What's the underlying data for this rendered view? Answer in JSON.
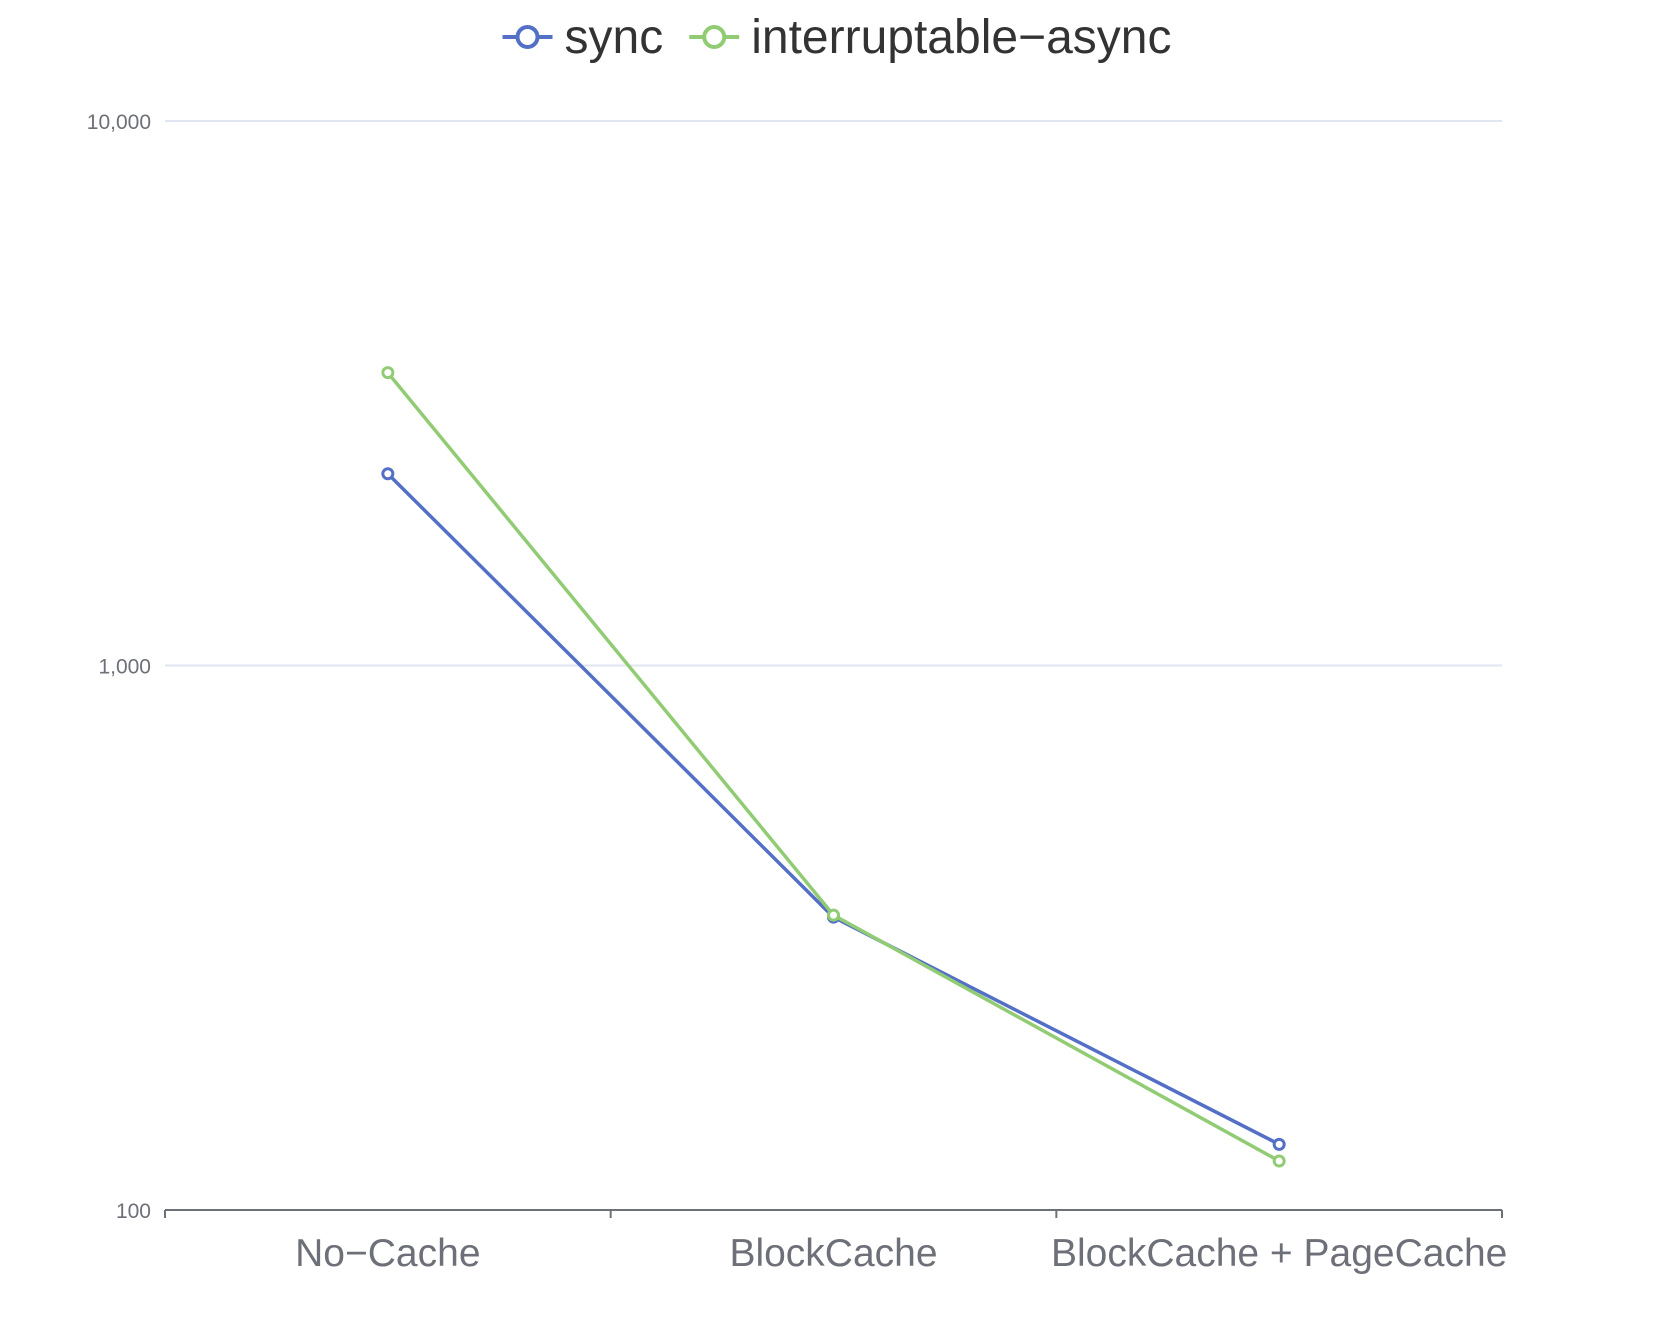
{
  "chart_data": {
    "type": "line",
    "y_scale": "log",
    "ylim": [
      100,
      10000
    ],
    "categories": [
      "No−Cache",
      "BlockCache",
      "BlockCache + PageCache"
    ],
    "y_ticks": [
      {
        "value": 100,
        "label": "100"
      },
      {
        "value": 1000,
        "label": "1,000"
      },
      {
        "value": 10000,
        "label": "10,000"
      }
    ],
    "grid": true,
    "legend_position": "top-center",
    "series": [
      {
        "name": "sync",
        "color": "#5470c6",
        "values": [
          2250,
          345,
          132
        ]
      },
      {
        "name": "interruptable−async",
        "color": "#91cc75",
        "values": [
          3450,
          348,
          123
        ]
      }
    ]
  }
}
